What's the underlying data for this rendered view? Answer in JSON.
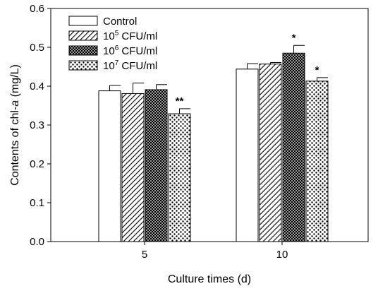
{
  "chart_data": {
    "type": "bar",
    "title": "",
    "xlabel": "Culture times (d)",
    "ylabel_prefix": "Contents of chl-",
    "ylabel_italic": "a",
    "ylabel_suffix": " (mg/L)",
    "categories": [
      "5",
      "10"
    ],
    "ylim": [
      0,
      0.6
    ],
    "yticks": [
      "0.0",
      "0.1",
      "0.2",
      "0.3",
      "0.4",
      "0.5",
      "0.6"
    ],
    "grid": false,
    "legend_position": "top-left",
    "series": [
      {
        "name": "Control",
        "legend_base": "Control",
        "legend_exp": "",
        "legend_unit": "",
        "pattern": "none",
        "values": [
          0.388,
          0.444
        ],
        "errors": [
          0.014,
          0.014
        ],
        "significance": [
          "",
          ""
        ]
      },
      {
        "name": "10^5 CFU/ml",
        "legend_base": "10",
        "legend_exp": "5",
        "legend_unit": " CFU/ml",
        "pattern": "diagonal",
        "values": [
          0.381,
          0.457
        ],
        "errors": [
          0.027,
          0.004
        ],
        "significance": [
          "",
          ""
        ]
      },
      {
        "name": "10^6 CFU/ml",
        "legend_base": "10",
        "legend_exp": "6",
        "legend_unit": " CFU/ml",
        "pattern": "crosshatch",
        "values": [
          0.391,
          0.485
        ],
        "errors": [
          0.013,
          0.02
        ],
        "significance": [
          "",
          "*"
        ]
      },
      {
        "name": "10^7 CFU/ml",
        "legend_base": "10",
        "legend_exp": "7",
        "legend_unit": " CFU/ml",
        "pattern": "dots",
        "values": [
          0.329,
          0.413
        ],
        "errors": [
          0.013,
          0.009
        ],
        "significance": [
          "**",
          "*"
        ]
      }
    ]
  }
}
